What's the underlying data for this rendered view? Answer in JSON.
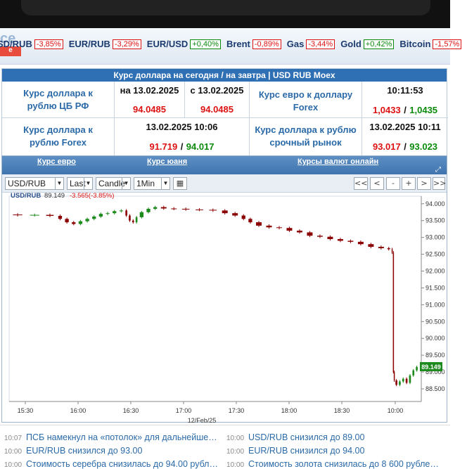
{
  "ticker": {
    "logo_text": "ce",
    "items": [
      {
        "name": "SD/RUB",
        "change": "-3,85%",
        "dir": "neg"
      },
      {
        "name": "EUR/RUB",
        "change": "-3,29%",
        "dir": "neg"
      },
      {
        "name": "EUR/USD",
        "change": "+0,40%",
        "dir": "pos"
      },
      {
        "name": "Brent",
        "change": "-0,89%",
        "dir": "neg"
      },
      {
        "name": "Gas",
        "change": "-3,44%",
        "dir": "neg"
      },
      {
        "name": "Gold",
        "change": "+0,42%",
        "dir": "pos"
      },
      {
        "name": "Bitcoin",
        "change": "-1,57%",
        "dir": "neg"
      }
    ]
  },
  "rates": {
    "title": "Курс доллара на сегодня / на завтра | USD RUB Moex",
    "cbr_label": "Курс доллара к рублю ЦБ РФ",
    "cbr_col1_head": "на 13.02.2025",
    "cbr_col1_val": "94.0485",
    "cbr_col2_head": "с 13.02.2025",
    "cbr_col2_val": "94.0485",
    "eur_forex_label": "Курс евро к доллару Forex",
    "eur_forex_time": "10:11:53",
    "eur_forex_bid": "1,0433",
    "eur_forex_ask": "1,0435",
    "forex_label": "Курс доллара к рублю Forex",
    "forex_time": "13.02.2025 10:06",
    "forex_bid": "91.719",
    "forex_ask": "94.017",
    "futures_label": "Курс доллара к рублю срочный рынок",
    "futures_time": "13.02.2025 10:11",
    "futures_bid": "93.017",
    "futures_ask": "93.023",
    "slash": "/"
  },
  "chart_links": {
    "euro": "Курс евро",
    "yuan": "Курс юаня",
    "online": "Курсы валют онлайн"
  },
  "toolbar": {
    "symbol": "USD/RUB",
    "price_type": "Last",
    "chart_type": "Candle",
    "interval": "1Min",
    "buttons": [
      "<<",
      "<",
      "-",
      "+",
      ">",
      ">>"
    ]
  },
  "chart_data": {
    "type": "candlestick",
    "title": "USD/RUB",
    "last": "89.149",
    "change": "-3.565(-3.85%)",
    "last_label": "89.149",
    "date_label": "12/Feb/25",
    "x_ticks": [
      "15:30",
      "16:00",
      "16:30",
      "17:00",
      "17:30",
      "18:00",
      "18:30",
      "10:00"
    ],
    "y_ticks": [
      "94.000",
      "93.500",
      "93.000",
      "92.500",
      "92.000",
      "91.500",
      "91.000",
      "90.500",
      "90.000",
      "89.500",
      "89.000",
      "88.500"
    ],
    "ylim": [
      88.25,
      94.1
    ],
    "close_path": [
      [
        0,
        93.68
      ],
      [
        10,
        93.66
      ],
      [
        20,
        93.67
      ],
      [
        28,
        93.64
      ],
      [
        32,
        93.55
      ],
      [
        36,
        93.45
      ],
      [
        40,
        93.4
      ],
      [
        44,
        93.48
      ],
      [
        48,
        93.55
      ],
      [
        52,
        93.62
      ],
      [
        56,
        93.7
      ],
      [
        60,
        93.72
      ],
      [
        64,
        93.78
      ],
      [
        68,
        93.8
      ],
      [
        70,
        93.65
      ],
      [
        72,
        93.5
      ],
      [
        74,
        93.45
      ],
      [
        76,
        93.6
      ],
      [
        80,
        93.75
      ],
      [
        84,
        93.85
      ],
      [
        88,
        93.9
      ],
      [
        94,
        93.86
      ],
      [
        100,
        93.85
      ],
      [
        108,
        93.83
      ],
      [
        116,
        93.82
      ],
      [
        124,
        93.8
      ],
      [
        130,
        93.72
      ],
      [
        136,
        93.65
      ],
      [
        140,
        93.55
      ],
      [
        144,
        93.45
      ],
      [
        150,
        93.35
      ],
      [
        156,
        93.3
      ],
      [
        162,
        93.28
      ],
      [
        168,
        93.2
      ],
      [
        174,
        93.15
      ],
      [
        180,
        93.05
      ],
      [
        186,
        93.02
      ],
      [
        192,
        92.95
      ],
      [
        198,
        92.9
      ],
      [
        204,
        92.87
      ],
      [
        210,
        92.8
      ],
      [
        216,
        92.72
      ],
      [
        222,
        92.68
      ],
      [
        225,
        92.65
      ],
      [
        226,
        92.55
      ],
      [
        226.5,
        89.0
      ],
      [
        227,
        88.75
      ],
      [
        229,
        88.62
      ],
      [
        231,
        88.72
      ],
      [
        233,
        88.8
      ],
      [
        235,
        88.68
      ],
      [
        237,
        88.9
      ],
      [
        239,
        89.05
      ],
      [
        241,
        89.149
      ]
    ]
  },
  "news": [
    {
      "time": "10:07",
      "text": "ПСБ намекнул на «потолок» для дальнейше…"
    },
    {
      "time": "10:00",
      "text": "USD/RUB снизился до 89.00"
    },
    {
      "time": "10:00",
      "text": "EUR/RUB снизился до 93.00"
    },
    {
      "time": "10:00",
      "text": "EUR/RUB снизился до 94.00"
    },
    {
      "time": "10:00",
      "text": "Стоимость серебра снизилась до 94.00 рубл…"
    },
    {
      "time": "10:00",
      "text": "Стоимость золота снизилась до 8 600 рубле…"
    }
  ]
}
